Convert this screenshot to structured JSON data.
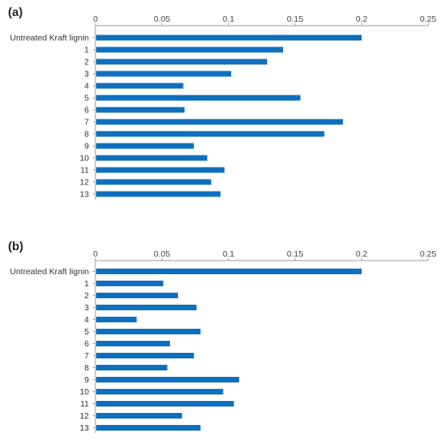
{
  "chart_data": [
    {
      "type": "bar",
      "orientation": "horizontal",
      "panel_label": "(a)",
      "title": "",
      "xlabel": "",
      "ylabel": "",
      "xlim": [
        0,
        0.25
      ],
      "x_ticks": [
        "0",
        "0.05",
        "0.1",
        "0.15",
        "0.2",
        "0.25"
      ],
      "x_tick_values": [
        0,
        0.05,
        0.1,
        0.15,
        0.2,
        0.25
      ],
      "categories": [
        "Untreated Kraft lignin",
        "1",
        "2",
        "3",
        "4",
        "5",
        "6",
        "7",
        "8",
        "9",
        "10",
        "11",
        "12",
        "13"
      ],
      "values": [
        0.2,
        0.141,
        0.129,
        0.102,
        0.066,
        0.154,
        0.067,
        0.186,
        0.172,
        0.074,
        0.084,
        0.097,
        0.087,
        0.094
      ],
      "color": "#0F6FBF",
      "grid": false,
      "legend": false
    },
    {
      "type": "bar",
      "orientation": "horizontal",
      "panel_label": "(b)",
      "title": "",
      "xlabel": "",
      "ylabel": "",
      "xlim": [
        0,
        0.25
      ],
      "x_ticks": [
        "0",
        "0.05",
        "0.1",
        "0.15",
        "0.2",
        "0.25"
      ],
      "x_tick_values": [
        0,
        0.05,
        0.1,
        0.15,
        0.2,
        0.25
      ],
      "categories": [
        "Untreated Kraft lignin",
        "1",
        "2",
        "3",
        "4",
        "5",
        "6",
        "7",
        "8",
        "9",
        "10",
        "11",
        "12",
        "13"
      ],
      "values": [
        0.2,
        0.051,
        0.062,
        0.076,
        0.031,
        0.079,
        0.056,
        0.074,
        0.054,
        0.108,
        0.096,
        0.104,
        0.065,
        0.079
      ],
      "color": "#0F6FBF",
      "grid": false,
      "legend": false
    }
  ]
}
